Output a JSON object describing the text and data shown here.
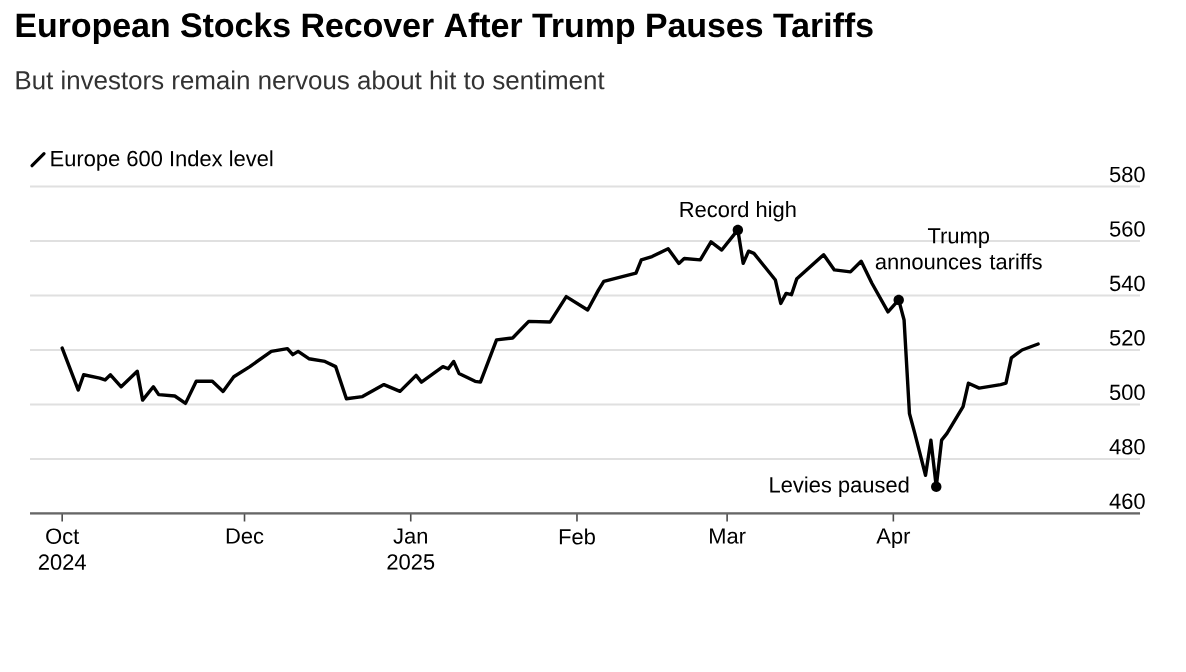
{
  "chart_data": {
    "type": "line",
    "title": "European Stocks Recover After Trump Pauses Tariffs",
    "subtitle": "But investors remain nervous about hit to sentiment",
    "x": [
      "2024-10-28",
      "2024-10-31",
      "2024-11-01",
      "2024-11-04",
      "2024-11-05",
      "2024-11-06",
      "2024-11-08",
      "2024-11-11",
      "2024-11-12",
      "2024-11-14",
      "2024-11-15",
      "2024-11-18",
      "2024-11-20",
      "2024-11-22",
      "2024-11-25",
      "2024-11-27",
      "2024-11-29",
      "2024-12-02",
      "2024-12-06",
      "2024-12-09",
      "2024-12-10",
      "2024-12-11",
      "2024-12-13",
      "2024-12-16",
      "2024-12-18",
      "2024-12-20",
      "2024-12-23",
      "2024-12-27",
      "2024-12-30",
      "2025-01-02",
      "2025-01-03",
      "2025-01-07",
      "2025-01-08",
      "2025-01-09",
      "2025-01-10",
      "2025-01-13",
      "2025-01-14",
      "2025-01-17",
      "2025-01-20",
      "2025-01-23",
      "2025-01-27",
      "2025-01-30",
      "2025-02-03",
      "2025-02-05",
      "2025-02-06",
      "2025-02-12",
      "2025-02-13",
      "2025-02-15",
      "2025-02-18",
      "2025-02-20",
      "2025-02-21",
      "2025-02-24",
      "2025-02-26",
      "2025-02-28",
      "2025-03-03",
      "2025-03-04",
      "2025-03-05",
      "2025-03-06",
      "2025-03-10",
      "2025-03-11",
      "2025-03-12",
      "2025-03-13",
      "2025-03-14",
      "2025-03-19",
      "2025-03-21",
      "2025-03-24",
      "2025-03-26",
      "2025-03-28",
      "2025-03-31",
      "2025-04-02",
      "2025-04-03",
      "2025-04-04",
      "2025-04-05",
      "2025-04-07",
      "2025-04-08",
      "2025-04-09",
      "2025-04-10",
      "2025-04-11",
      "2025-04-14",
      "2025-04-15",
      "2025-04-17",
      "2025-04-21",
      "2025-04-22",
      "2025-04-23",
      "2025-04-25",
      "2025-04-28"
    ],
    "series": [
      {
        "name": "Europe 600 Index level",
        "color": "#000000",
        "values": [
          520.7,
          505.3,
          510.9,
          509.7,
          509,
          510.9,
          506.5,
          512.2,
          501.6,
          506.5,
          503.6,
          503.1,
          500.4,
          508.5,
          508.5,
          504.8,
          510.2,
          513.9,
          519.5,
          520.5,
          518.3,
          519.5,
          516.8,
          515.8,
          513.9,
          502.1,
          502.9,
          507.3,
          504.8,
          510.7,
          508.2,
          513.9,
          513.1,
          515.8,
          511.4,
          508.5,
          508.2,
          523.7,
          524.4,
          530.5,
          530.3,
          539.6,
          534.7,
          542,
          545.2,
          548.2,
          553.1,
          554.3,
          557.2,
          551.8,
          553.6,
          553.1,
          559.7,
          556.7,
          564.1,
          551.8,
          556.3,
          555.5,
          545.7,
          537.1,
          540.8,
          540.3,
          546.2,
          555,
          549.4,
          548.7,
          552.6,
          544.5,
          534,
          538.4,
          531,
          496.7,
          489.4,
          474,
          486.9,
          469.8,
          486.9,
          489.4,
          499.2,
          507.8,
          506,
          507.3,
          507.8,
          517.1,
          520,
          522.2
        ]
      }
    ],
    "xlim": [
      "2024-10-22",
      "2025-05-17"
    ],
    "xticks": [
      {
        "value": "2024-10-28",
        "label": "Oct 2024"
      },
      {
        "value": "2024-12-01",
        "label": "Dec"
      },
      {
        "value": "2025-01-01",
        "label": "Jan 2025"
      },
      {
        "value": "2025-02-01",
        "label": "Feb"
      },
      {
        "value": "2025-03-01",
        "label": "Mar"
      },
      {
        "value": "2025-04-01",
        "label": "Apr"
      }
    ],
    "ylim": [
      460,
      580
    ],
    "yticks": [
      460,
      480,
      500,
      520,
      540,
      560,
      580
    ],
    "grid": "y",
    "legend": "top left",
    "line_style": "solid",
    "marker": "none",
    "annotations": [
      {
        "text": "Record high",
        "x": "2025-03-03",
        "y": 564.1
      },
      {
        "text": "Trump announces tariffs",
        "x": "2025-04-02",
        "y": 538.4
      },
      {
        "text": "Levies paused",
        "x": "2025-04-09",
        "y": 469.8
      }
    ]
  }
}
